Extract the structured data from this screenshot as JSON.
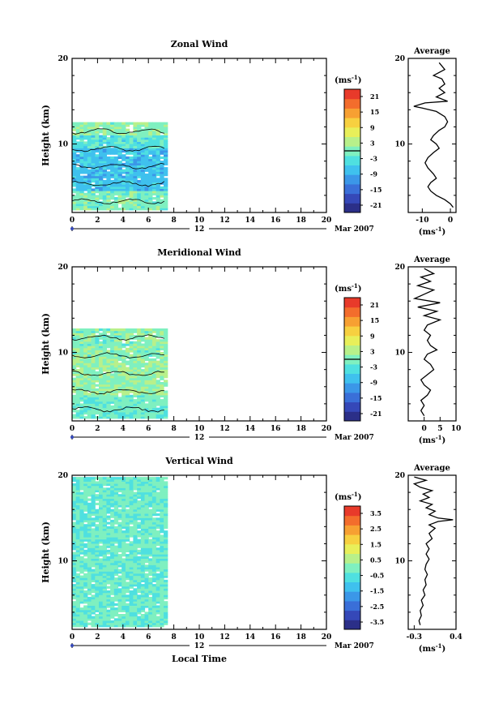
{
  "chart_data": [
    {
      "type": "heatmap",
      "title": "Zonal Wind",
      "ylabel": "Height (km)",
      "xlabel": "",
      "xlim": [
        0,
        20
      ],
      "ylim": [
        2,
        20
      ],
      "x_ticks": [
        "0",
        "2",
        "4",
        "6",
        "8",
        "10",
        "12",
        "14",
        "16",
        "18",
        "20"
      ],
      "y_ticks": [
        "20",
        "10"
      ],
      "date_marker": "12",
      "date_label": "Mar 2007",
      "colorbar": {
        "unit_label": "(ms",
        "unit_exp": "-1",
        "unit_close": ")",
        "ticks": [
          "21",
          "15",
          "9",
          "3",
          "-3",
          "-9",
          "-15",
          "-21"
        ],
        "range": [
          -24,
          24
        ],
        "zero_line": 0
      },
      "data_extent": {
        "x": [
          0,
          7.3
        ],
        "y": [
          2.3,
          12.5
        ]
      },
      "value_bands": [
        {
          "y": [
            2.3,
            4.5
          ],
          "value": 0
        },
        {
          "y": [
            4.5,
            9.5
          ],
          "value": -7
        },
        {
          "y": [
            9.5,
            11
          ],
          "value": -3
        },
        {
          "y": [
            11,
            12.5
          ],
          "value": 1
        }
      ],
      "profile": {
        "title": "Average",
        "xlim": [
          -15,
          2
        ],
        "x_ticks": [
          "-10",
          "0"
        ],
        "y_ticks": [
          "20",
          "10"
        ],
        "ylim": [
          2,
          20
        ],
        "points": [
          [
            -4,
            19.5
          ],
          [
            -2,
            18.7
          ],
          [
            -6,
            18
          ],
          [
            -3,
            17.6
          ],
          [
            -2,
            17
          ],
          [
            -4,
            16.5
          ],
          [
            -2,
            16
          ],
          [
            -5,
            15.5
          ],
          [
            -1,
            15
          ],
          [
            -9,
            14.8
          ],
          [
            -13,
            14.4
          ],
          [
            -10,
            14.2
          ],
          [
            -5,
            13.8
          ],
          [
            -2,
            13.2
          ],
          [
            -1,
            12.6
          ],
          [
            -2,
            12
          ],
          [
            -4,
            11.6
          ],
          [
            -6,
            11
          ],
          [
            -7,
            10.5
          ],
          [
            -5,
            10
          ],
          [
            -4,
            9.5
          ],
          [
            -6,
            9
          ],
          [
            -8,
            8.4
          ],
          [
            -9,
            7.8
          ],
          [
            -8,
            7.2
          ],
          [
            -6,
            6.5
          ],
          [
            -5,
            6
          ],
          [
            -7,
            5.5
          ],
          [
            -8,
            5
          ],
          [
            -7,
            4.5
          ],
          [
            -5,
            4
          ],
          [
            -2,
            3.5
          ],
          [
            0,
            3
          ],
          [
            1,
            2.6
          ]
        ],
        "xlabel": "(ms",
        "xlabel_exp": "-1",
        "xlabel_close": ")"
      }
    },
    {
      "type": "heatmap",
      "title": "Meridional Wind",
      "ylabel": "Height (km)",
      "xlabel": "",
      "xlim": [
        0,
        20
      ],
      "ylim": [
        2,
        20
      ],
      "x_ticks": [
        "0",
        "2",
        "4",
        "6",
        "8",
        "10",
        "12",
        "14",
        "16",
        "18",
        "20"
      ],
      "y_ticks": [
        "20",
        "10"
      ],
      "date_marker": "12",
      "date_label": "Mar 2007",
      "colorbar": {
        "unit_label": "(ms",
        "unit_exp": "-1",
        "unit_close": ")",
        "ticks": [
          "21",
          "15",
          "9",
          "3",
          "-3",
          "-9",
          "-15",
          "-21"
        ],
        "range": [
          -24,
          24
        ],
        "zero_line": 0
      },
      "data_extent": {
        "x": [
          0,
          7.3
        ],
        "y": [
          2.3,
          12.8
        ]
      },
      "value_bands": [
        {
          "y": [
            2.3,
            5
          ],
          "value": -1
        },
        {
          "y": [
            5,
            9.5
          ],
          "value": 1.5
        },
        {
          "y": [
            9.5,
            12.8
          ],
          "value": 0.5
        }
      ],
      "profile": {
        "title": "Average",
        "xlim": [
          -5,
          10
        ],
        "x_ticks": [
          "0",
          "5",
          "10"
        ],
        "y_ticks": [
          "20",
          "10"
        ],
        "ylim": [
          2,
          20
        ],
        "points": [
          [
            0,
            19.8
          ],
          [
            3,
            19.2
          ],
          [
            -1,
            18.8
          ],
          [
            2,
            18.3
          ],
          [
            -2,
            17.8
          ],
          [
            3,
            17.3
          ],
          [
            0,
            16.8
          ],
          [
            -3,
            16.3
          ],
          [
            5,
            15.8
          ],
          [
            -2,
            15.3
          ],
          [
            4,
            14.8
          ],
          [
            0,
            14.3
          ],
          [
            5,
            13.8
          ],
          [
            1,
            13.2
          ],
          [
            0,
            12.6
          ],
          [
            2,
            12
          ],
          [
            1,
            11.4
          ],
          [
            2,
            10.8
          ],
          [
            4,
            10.3
          ],
          [
            1,
            9.8
          ],
          [
            0,
            9.2
          ],
          [
            2,
            8.6
          ],
          [
            3,
            8
          ],
          [
            1,
            7.4
          ],
          [
            -1,
            6.8
          ],
          [
            0,
            6.2
          ],
          [
            2,
            5.6
          ],
          [
            1,
            5
          ],
          [
            -1,
            4.4
          ],
          [
            0,
            3.8
          ],
          [
            -1,
            3.2
          ],
          [
            0,
            2.6
          ]
        ],
        "xlabel": "(ms",
        "xlabel_exp": "-1",
        "xlabel_close": ")"
      }
    },
    {
      "type": "heatmap",
      "title": "Vertical Wind",
      "ylabel": "Height (km)",
      "xlabel": "Local Time",
      "xlim": [
        0,
        20
      ],
      "ylim": [
        2,
        20
      ],
      "x_ticks": [
        "0",
        "2",
        "4",
        "6",
        "8",
        "10",
        "12",
        "14",
        "16",
        "18",
        "20"
      ],
      "y_ticks": [
        "20",
        "10"
      ],
      "date_marker": "12",
      "date_label": "Mar 2007",
      "colorbar": {
        "unit_label": "(ms",
        "unit_exp": "-1",
        "unit_close": ")",
        "ticks": [
          "3.5",
          "2.5",
          "1.5",
          "0.5",
          "-0.5",
          "-1.5",
          "-2.5",
          "-3.5"
        ],
        "range": [
          -4,
          4
        ],
        "zero_line": null
      },
      "data_extent": {
        "x": [
          0,
          7.3
        ],
        "y": [
          2.3,
          19.8
        ]
      },
      "value_bands": [
        {
          "y": [
            2.3,
            19.8
          ],
          "value": -0.2
        }
      ],
      "profile": {
        "title": "Average",
        "xlim": [
          -0.4,
          0.4
        ],
        "x_ticks": [
          "-0.3",
          "0.4"
        ],
        "y_ticks": [
          "20",
          "10"
        ],
        "ylim": [
          2,
          20
        ],
        "points": [
          [
            -0.3,
            19.8
          ],
          [
            -0.1,
            19.4
          ],
          [
            -0.3,
            19
          ],
          [
            -0.2,
            18.6
          ],
          [
            0,
            18.2
          ],
          [
            -0.15,
            17.8
          ],
          [
            -0.05,
            17.4
          ],
          [
            -0.2,
            17
          ],
          [
            0,
            16.6
          ],
          [
            -0.1,
            16.2
          ],
          [
            0.05,
            15.8
          ],
          [
            -0.05,
            15.4
          ],
          [
            0.1,
            15
          ],
          [
            0.35,
            14.8
          ],
          [
            0.1,
            14.6
          ],
          [
            -0.05,
            14.2
          ],
          [
            0.05,
            13.8
          ],
          [
            -0.05,
            13.2
          ],
          [
            0,
            12.6
          ],
          [
            -0.1,
            12
          ],
          [
            -0.05,
            11.4
          ],
          [
            -0.1,
            10.8
          ],
          [
            -0.05,
            10.2
          ],
          [
            -0.1,
            9.6
          ],
          [
            -0.12,
            9
          ],
          [
            -0.08,
            8.4
          ],
          [
            -0.12,
            7.8
          ],
          [
            -0.1,
            7.2
          ],
          [
            -0.15,
            6.6
          ],
          [
            -0.12,
            6
          ],
          [
            -0.18,
            5.4
          ],
          [
            -0.15,
            4.8
          ],
          [
            -0.2,
            4.2
          ],
          [
            -0.18,
            3.6
          ],
          [
            -0.22,
            3
          ],
          [
            -0.2,
            2.5
          ]
        ],
        "xlabel": "(ms",
        "xlabel_exp": "-1",
        "xlabel_close": ")"
      }
    }
  ]
}
